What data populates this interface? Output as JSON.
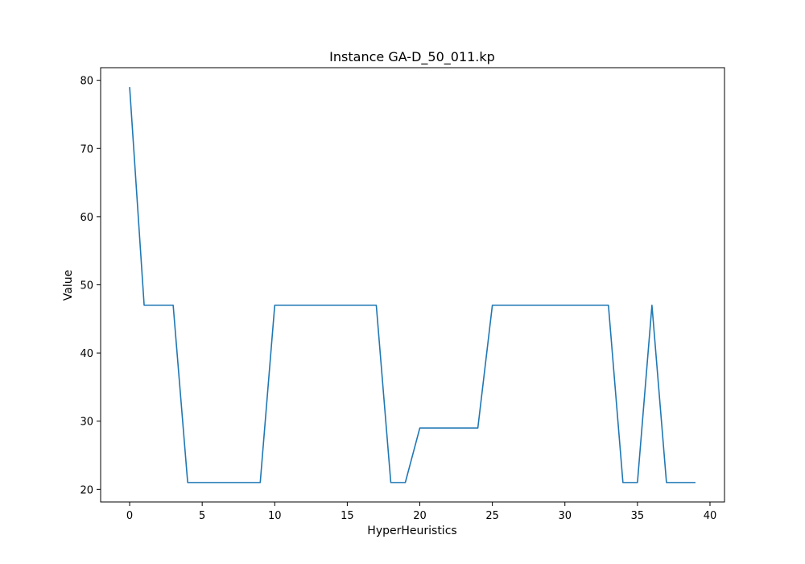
{
  "chart_data": {
    "type": "line",
    "title": "Instance GA-D_50_011.kp",
    "xlabel": "HyperHeuristics",
    "ylabel": "Value",
    "xlim": [
      -2,
      41
    ],
    "ylim": [
      18.15,
      81.85
    ],
    "xticks": [
      0,
      5,
      10,
      15,
      20,
      25,
      30,
      35,
      40
    ],
    "yticks": [
      20,
      30,
      40,
      50,
      60,
      70,
      80
    ],
    "grid": false,
    "line_color": "#1f77b4",
    "series": [
      {
        "x": [
          0,
          1,
          2,
          3,
          4,
          5,
          6,
          7,
          8,
          9,
          10,
          11,
          12,
          13,
          14,
          15,
          16,
          17,
          18,
          19,
          20,
          21,
          22,
          23,
          24,
          25,
          26,
          27,
          28,
          29,
          30,
          31,
          32,
          33,
          34,
          35,
          36,
          37,
          38,
          39
        ],
        "values": [
          79,
          47,
          47,
          47,
          21,
          21,
          21,
          21,
          21,
          21,
          47,
          47,
          47,
          47,
          47,
          47,
          47,
          47,
          21,
          21,
          29,
          29,
          29,
          29,
          29,
          47,
          47,
          47,
          47,
          47,
          47,
          47,
          47,
          47,
          21,
          21,
          47,
          21,
          21,
          21
        ]
      }
    ]
  }
}
